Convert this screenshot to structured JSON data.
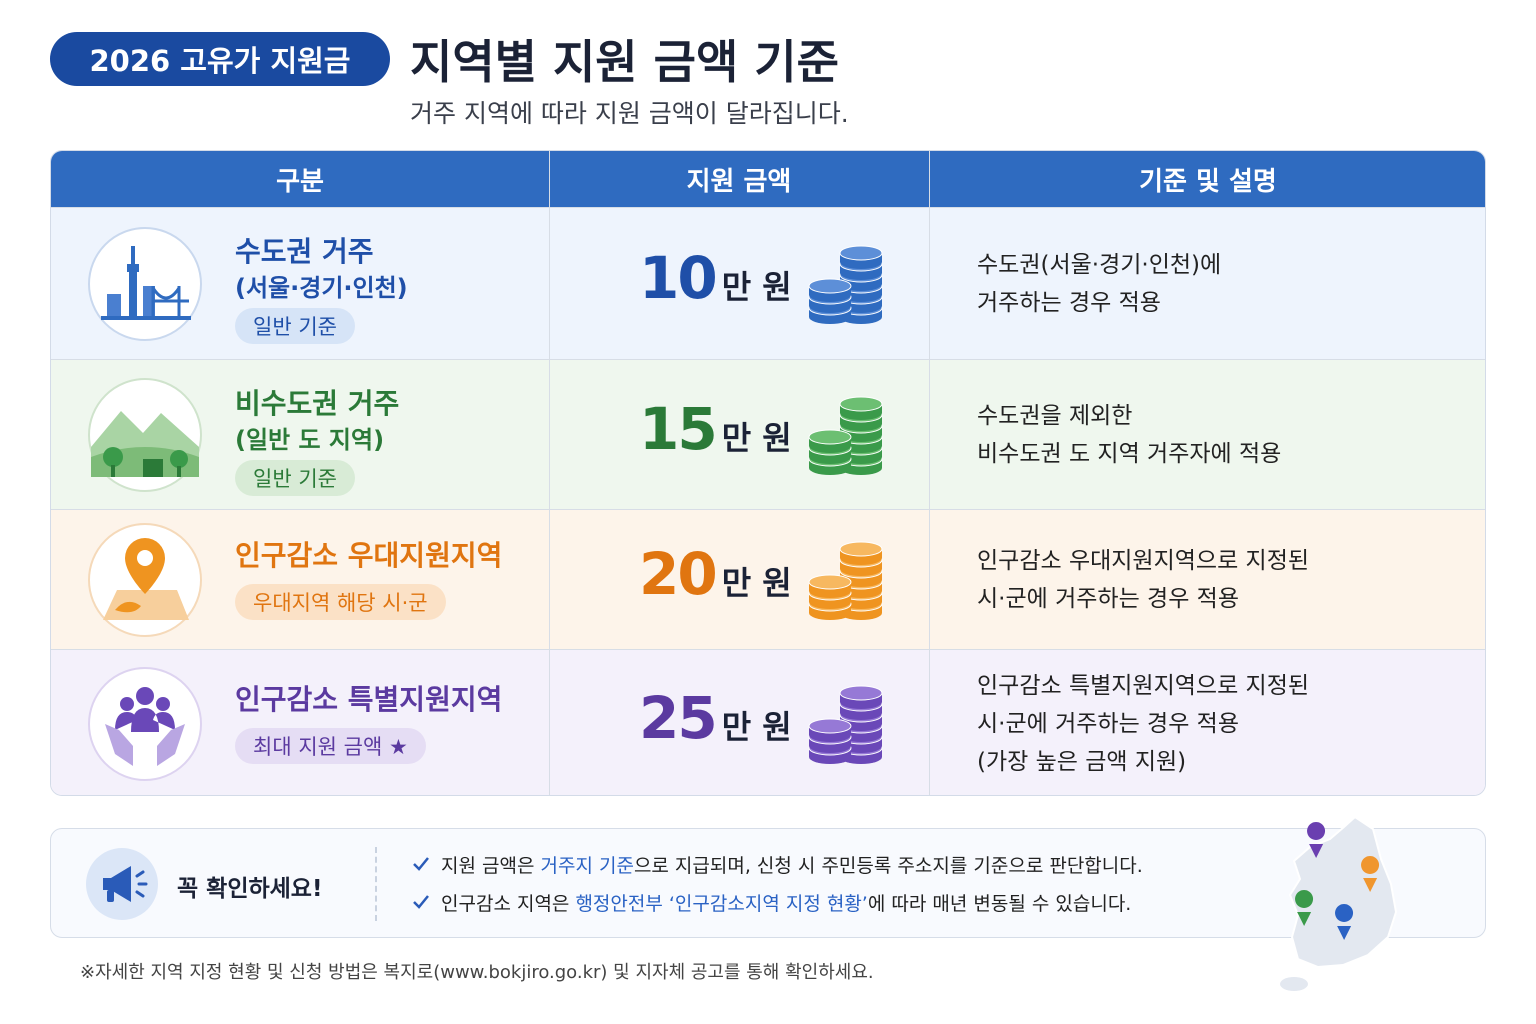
{
  "header": {
    "badge": "2026 고유가 지원금",
    "title": "지역별 지원 금액 기준",
    "subtitle": "거주 지역에 따라 지원 금액이 달라집니다."
  },
  "table": {
    "columns": [
      "구분",
      "지원 금액",
      "기준 및 설명"
    ],
    "rows": [
      {
        "name": "수도권 거주",
        "detail": "(서울·경기·인천)",
        "tag": "일반 기준",
        "amount": "10",
        "unit": "만 원",
        "description": [
          "수도권(서울·경기·인천)에",
          "거주하는 경우 적용"
        ]
      },
      {
        "name": "비수도권 거주",
        "detail": "(일반 도 지역)",
        "tag": "일반 기준",
        "amount": "15",
        "unit": "만 원",
        "description": [
          "수도권을 제외한",
          "비수도권 도 지역 거주자에 적용"
        ]
      },
      {
        "name": "인구감소 우대지원지역",
        "tag": "우대지역 해당 시·군",
        "amount": "20",
        "unit": "만 원",
        "description": [
          "인구감소 우대지원지역으로 지정된",
          "시·군에 거주하는 경우 적용"
        ]
      },
      {
        "name": "인구감소 특별지원지역",
        "tag": "최대 지원 금액 ★",
        "amount": "25",
        "unit": "만 원",
        "description": [
          "인구감소 특별지원지역으로 지정된",
          "시·군에 거주하는 경우 적용",
          "(가장 높은 금액 지원)"
        ]
      }
    ]
  },
  "notice": {
    "title": "꼭 확인하세요!",
    "items": [
      [
        "지원 금액은 ",
        "거주지 기준",
        "으로 지급되며, 신청 시 주민등록 주소지를 기준으로 판단합니다."
      ],
      [
        "인구감소 지역은 ",
        "행정안전부 ‘인구감소지역 지정 현황’",
        "에 따라 매년 변동될 수 있습니다."
      ]
    ]
  },
  "footnote": "※자세한 지역 지정 현황 및 신청 방법은 복지로(www.bokjiro.go.kr) 및 지자체 공고를 통해 확인하세요."
}
